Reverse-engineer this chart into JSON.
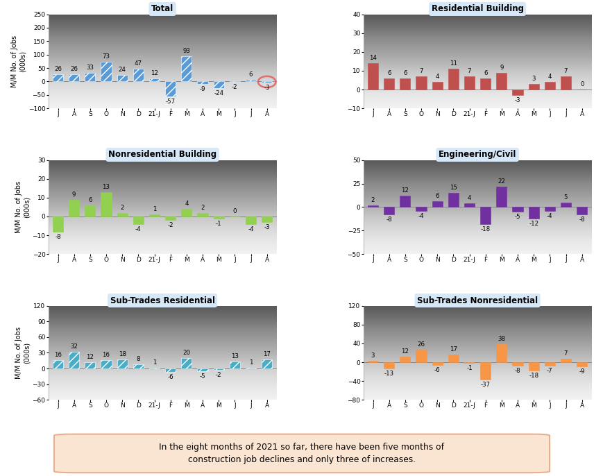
{
  "subplots": [
    {
      "title": "Total",
      "values": [
        26,
        26,
        33,
        73,
        24,
        47,
        12,
        -57,
        93,
        -9,
        -24,
        -2,
        6,
        -3
      ],
      "color": "#5B9BD5",
      "ylim": [
        -100,
        250
      ],
      "yticks": [
        -100,
        -50,
        0,
        50,
        100,
        150,
        200,
        250
      ],
      "last_circled": true,
      "hatch": "///",
      "row": 0,
      "col": 0
    },
    {
      "title": "Residential Building",
      "values": [
        14,
        6,
        6,
        7,
        4,
        11,
        7,
        6,
        9,
        -3,
        3,
        4,
        7,
        0
      ],
      "color": "#C0504D",
      "ylim": [
        -10,
        40
      ],
      "yticks": [
        -10,
        0,
        10,
        20,
        30,
        40
      ],
      "last_circled": false,
      "hatch": "",
      "row": 0,
      "col": 1
    },
    {
      "title": "Nonresidential Building",
      "values": [
        -8,
        9,
        6,
        13,
        2,
        -4,
        1,
        -2,
        4,
        2,
        -1,
        0,
        -4,
        -3
      ],
      "color": "#92D050",
      "ylim": [
        -20,
        30
      ],
      "yticks": [
        -20,
        -10,
        0,
        10,
        20,
        30
      ],
      "last_circled": false,
      "hatch": "",
      "row": 1,
      "col": 0
    },
    {
      "title": "Engineering/Civil",
      "values": [
        2,
        -8,
        12,
        -4,
        6,
        15,
        4,
        -18,
        22,
        -5,
        -12,
        -4,
        5,
        -8
      ],
      "color": "#7030A0",
      "ylim": [
        -50,
        50
      ],
      "yticks": [
        -50,
        -25,
        0,
        25,
        50
      ],
      "last_circled": false,
      "hatch": "",
      "row": 1,
      "col": 1
    },
    {
      "title": "Sub-Trades Residential",
      "values": [
        16,
        32,
        12,
        16,
        18,
        8,
        1,
        -6,
        20,
        -5,
        -2,
        13,
        1,
        17
      ],
      "color": "#4BACC6",
      "ylim": [
        -60,
        120
      ],
      "yticks": [
        -60,
        -30,
        0,
        30,
        60,
        90,
        120
      ],
      "last_circled": false,
      "hatch": "///",
      "row": 2,
      "col": 0
    },
    {
      "title": "Sub-Trades Nonresidential",
      "values": [
        3,
        -13,
        12,
        26,
        -6,
        17,
        -1,
        -37,
        38,
        -8,
        -18,
        -7,
        7,
        -9
      ],
      "color": "#F79646",
      "ylim": [
        -80,
        120
      ],
      "yticks": [
        -80,
        -40,
        0,
        40,
        80,
        120
      ],
      "last_circled": false,
      "hatch": "",
      "row": 2,
      "col": 1
    }
  ],
  "x_labels": [
    "J",
    "A",
    "S",
    "O",
    "N",
    "D",
    "21-J",
    "F",
    "M",
    "A",
    "M",
    "J",
    "J",
    "A"
  ],
  "ylabel": "M/M No. of Jobs\n(000s)",
  "footer_text": "In the eight months of 2021 so far, there have been five months of\nconstruction job declines and only three of increases.",
  "title_box_color": "#D6E8F7",
  "circle_color": "#E07070",
  "footer_bg": "#FAE5D3",
  "footer_edge": "#E8B090"
}
